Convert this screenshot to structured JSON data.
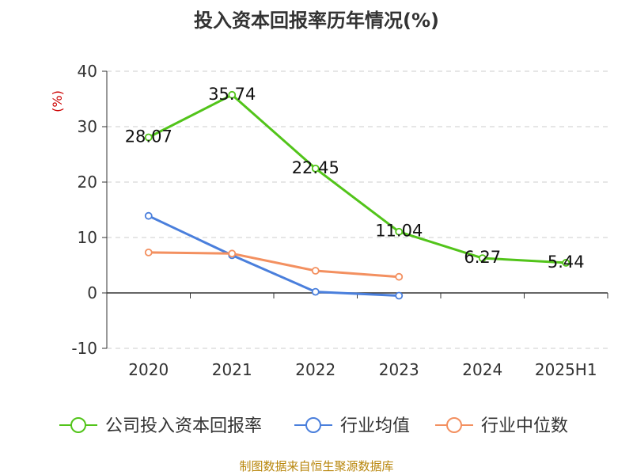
{
  "chart_data": {
    "type": "line",
    "title": "投入资本回报率历年情况(%)",
    "ylabel": "(%)",
    "xlabel": "",
    "categories": [
      "2020",
      "2021",
      "2022",
      "2023",
      "2024",
      "2025H1"
    ],
    "ylim": [
      -10,
      40
    ],
    "yticks": [
      "40",
      "30",
      "20",
      "10",
      "0",
      "-10"
    ],
    "grid": true,
    "legend_position": "bottom",
    "series": [
      {
        "name": "公司投入资本回报率",
        "color": "#52c41a",
        "values": [
          28.07,
          35.74,
          22.45,
          11.04,
          6.27,
          5.44
        ],
        "labels": [
          "28.07",
          "35.74",
          "22.45",
          "11.04",
          "6.27",
          "5.44"
        ]
      },
      {
        "name": "行业均值",
        "color": "#4a7fdc",
        "values": [
          13.9,
          6.8,
          0.2,
          -0.5,
          null,
          null
        ]
      },
      {
        "name": "行业中位数",
        "color": "#f39060",
        "values": [
          7.3,
          7.1,
          4.0,
          2.9,
          null,
          null
        ]
      }
    ],
    "source": "制图数据来自恒生聚源数据库"
  }
}
